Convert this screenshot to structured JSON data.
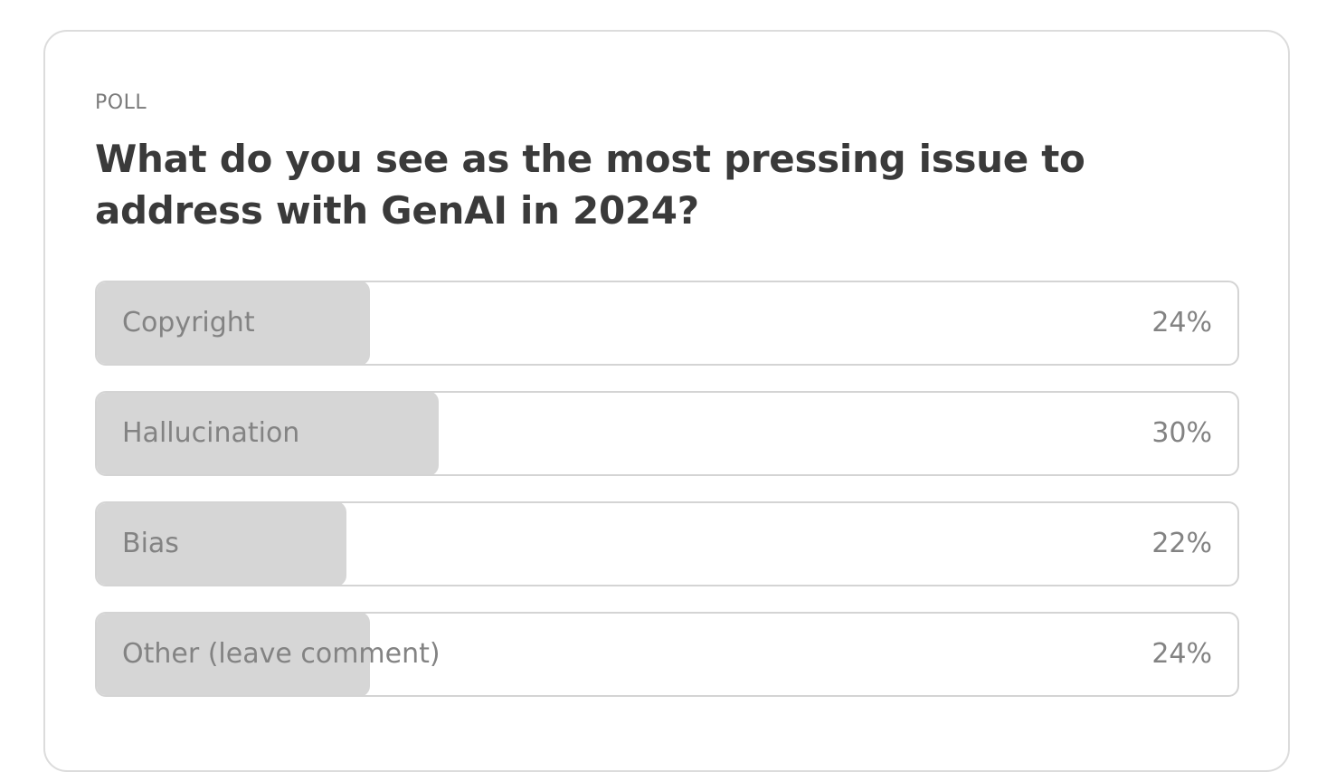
{
  "poll": {
    "label": "POLL",
    "question": "What do you see as the most pressing issue to address with GenAI in 2024?",
    "options": [
      {
        "label": "Copyright",
        "percent_text": "24%",
        "percent": 24
      },
      {
        "label": "Hallucination",
        "percent_text": "30%",
        "percent": 30
      },
      {
        "label": "Bias",
        "percent_text": "22%",
        "percent": 22
      },
      {
        "label": "Other (leave comment)",
        "percent_text": "24%",
        "percent": 24
      }
    ]
  },
  "colors": {
    "bar_fill": "#d6d6d6",
    "border": "#d4d4d4",
    "text_muted": "#838383",
    "heading": "#3a3a3a"
  }
}
